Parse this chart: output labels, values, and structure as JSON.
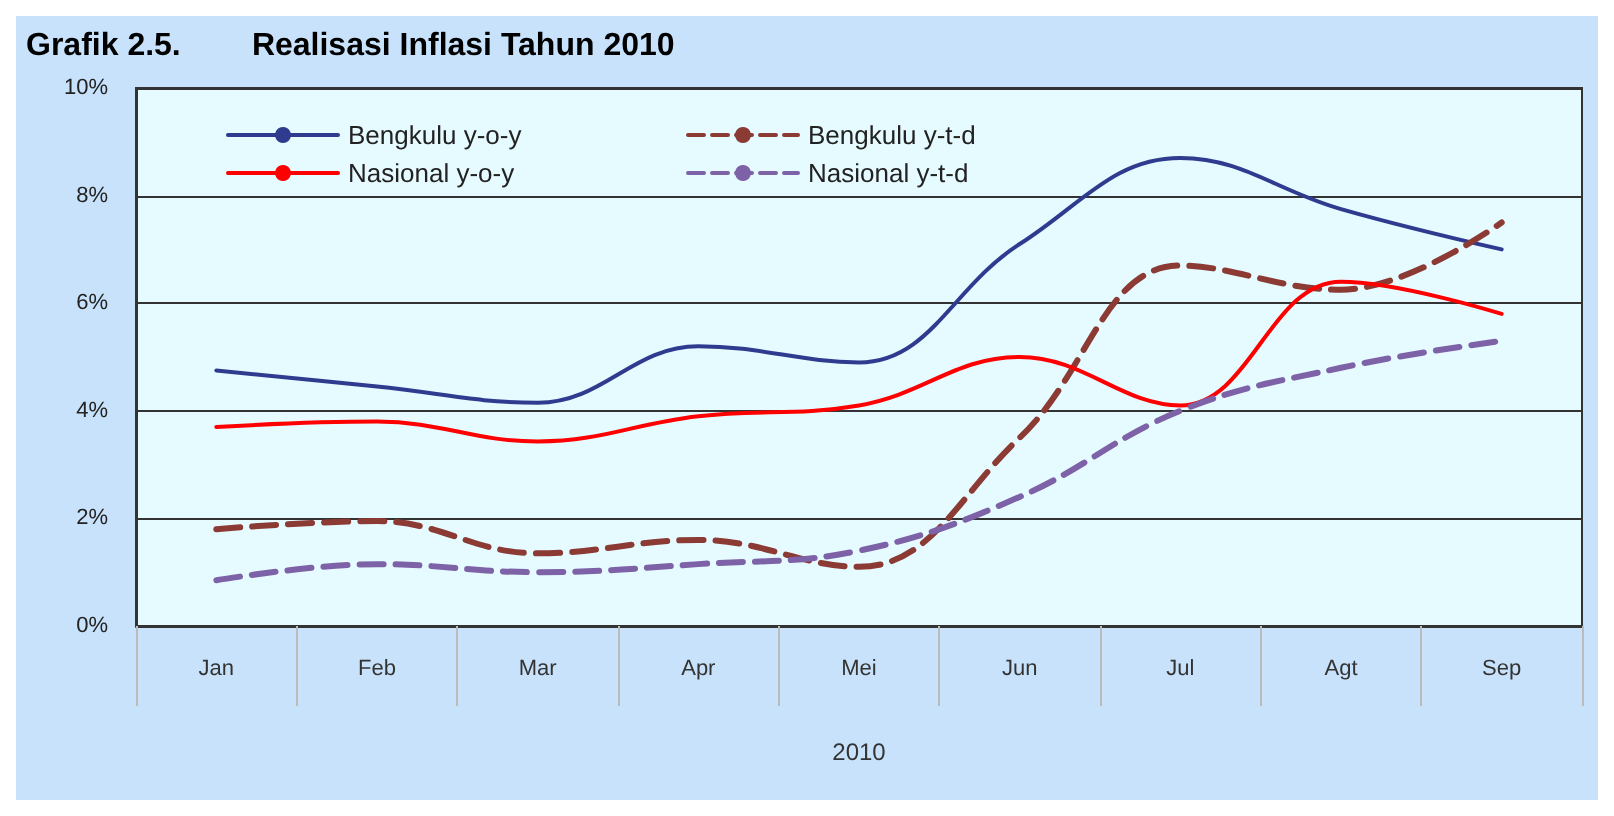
{
  "chart_data": {
    "type": "line",
    "title": "Grafik 2.5.        Realisasi Inflasi Tahun 2010",
    "xlabel": "2010",
    "categories": [
      "Jan",
      "Feb",
      "Mar",
      "Apr",
      "Mei",
      "Jun",
      "Jul",
      "Agt",
      "Sep"
    ],
    "series": [
      {
        "name": "Bengkulu y-o-y",
        "color": "#2e3b8f",
        "line_style": "solid",
        "values": [
          4.75,
          4.45,
          4.15,
          5.2,
          4.9,
          7.1,
          8.7,
          7.75,
          7.0
        ]
      },
      {
        "name": "Bengkulu y-t-d",
        "color": "#8b3a34",
        "line_style": "dashed",
        "values": [
          1.8,
          1.95,
          1.35,
          1.6,
          1.1,
          3.5,
          6.7,
          6.25,
          7.5
        ]
      },
      {
        "name": "Nasional y-o-y",
        "color": "#ff0000",
        "line_style": "solid",
        "values": [
          3.7,
          3.8,
          3.43,
          3.9,
          4.1,
          5.0,
          4.1,
          6.4,
          5.8
        ]
      },
      {
        "name": "Nasional y-t-d",
        "color": "#7e62a8",
        "line_style": "dashed",
        "values": [
          0.85,
          1.15,
          1.0,
          1.15,
          1.4,
          2.4,
          4.0,
          4.8,
          5.3
        ]
      }
    ],
    "ylim": [
      0,
      10
    ],
    "yticks": [
      {
        "value": 0,
        "label": "0%"
      },
      {
        "value": 2,
        "label": "2%"
      },
      {
        "value": 4,
        "label": "4%"
      },
      {
        "value": 6,
        "label": "6%"
      },
      {
        "value": 8,
        "label": "8%"
      },
      {
        "value": 10,
        "label": "10%"
      }
    ],
    "grid": "y",
    "legend": "top",
    "marker": "none"
  }
}
